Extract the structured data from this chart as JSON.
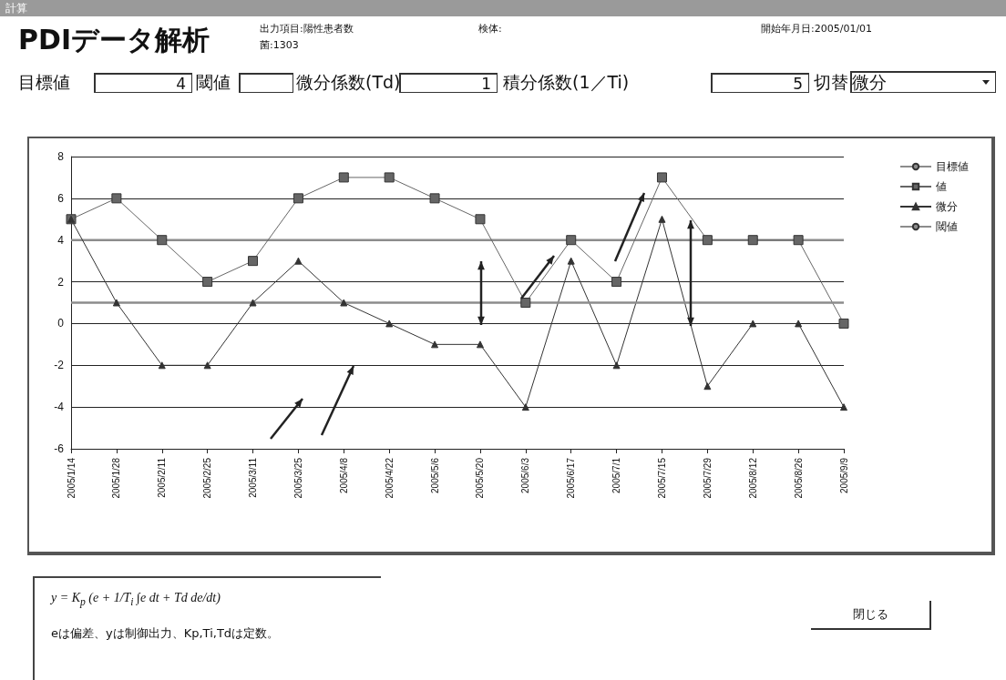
{
  "chart_data": {
    "type": "line",
    "title": "PDIデータ解析",
    "subtitle": "出力項目:陽性患者数",
    "categories": [
      "2005/1/14",
      "2005/1/28",
      "2005/2/11",
      "2005/2/25",
      "2005/3/11",
      "2005/3/25",
      "2005/4/8",
      "2005/4/22",
      "2005/5/6",
      "2005/5/20",
      "2005/6/3",
      "2005/6/17",
      "2005/7/1",
      "2005/7/15",
      "2005/7/29",
      "2005/8/12",
      "2005/8/26",
      "2005/9/9"
    ],
    "series": [
      {
        "name": "目標値",
        "color": "#8c8c8c",
        "marker": "none",
        "values": [
          4,
          4,
          4,
          4,
          4,
          4,
          4,
          4,
          4,
          4,
          4,
          4,
          4,
          4,
          4,
          4,
          4,
          4
        ]
      },
      {
        "name": "値",
        "color": "#666666",
        "marker": "square",
        "values": [
          5,
          6,
          4,
          2,
          3,
          6,
          7,
          7,
          6,
          5,
          1,
          4,
          2,
          7,
          4,
          4,
          4,
          0
        ]
      },
      {
        "name": "微分",
        "color": "#333333",
        "marker": "triangle",
        "values": [
          5,
          1,
          -2,
          -2,
          1,
          3,
          1,
          0,
          -1,
          -1,
          -4,
          3,
          -2,
          5,
          -3,
          0,
          0,
          -4
        ]
      },
      {
        "name": "閾値",
        "color": "#8c8c8c",
        "marker": "none",
        "values": [
          1,
          1,
          1,
          1,
          1,
          1,
          1,
          1,
          1,
          1,
          1,
          1,
          1,
          1,
          1,
          1,
          1,
          1
        ]
      }
    ],
    "ylim": [
      -6,
      8
    ],
    "yticks": [
      -6,
      -4,
      -2,
      0,
      2,
      4,
      6,
      8
    ],
    "grid": "y",
    "legend": "top right",
    "annotations": [
      "計算",
      "菌:1303",
      "検体:",
      "開始年月日:2005/01/01",
      "目標値",
      "4",
      "閾値",
      "微分係数(Td)",
      "1",
      "積分係数(1／Ti)",
      "5",
      "切替",
      "微分",
      "y = K$_{p}$ (e + 1/T$_{i}$ ∫e dt + Td de/dt)",
      "eは偏差、yは制御出力、Kp,Ti,Tdは定数。",
      "閉じる"
    ]
  }
}
